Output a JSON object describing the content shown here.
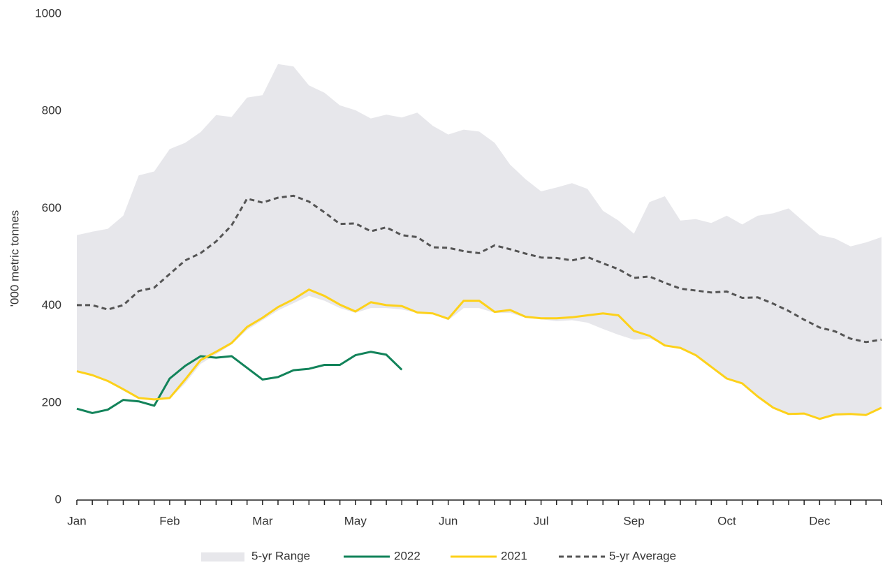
{
  "chart_data": {
    "type": "line",
    "y_label": "'000 metric tonnes",
    "categories": [
      "Jan",
      null,
      null,
      null,
      null,
      null,
      "Feb",
      null,
      null,
      null,
      null,
      null,
      "Mar",
      null,
      null,
      null,
      null,
      null,
      "May",
      null,
      null,
      null,
      null,
      null,
      "Jun",
      null,
      null,
      null,
      null,
      null,
      "Jul",
      null,
      null,
      null,
      null,
      null,
      "Sep",
      null,
      null,
      null,
      null,
      null,
      "Oct",
      null,
      null,
      null,
      null,
      null,
      "Dec",
      null,
      null,
      null,
      null
    ],
    "ylim": [
      0,
      1000
    ],
    "yticks": [
      0,
      200,
      400,
      600,
      800,
      1000
    ],
    "series": [
      {
        "name": "5-yr Range",
        "type": "range",
        "color": "#e7e7eb",
        "lower": [
          265,
          257,
          245,
          225,
          208,
          205,
          208,
          240,
          280,
          300,
          320,
          350,
          370,
          390,
          405,
          420,
          410,
          395,
          385,
          395,
          395,
          392,
          385,
          383,
          370,
          395,
          395,
          385,
          385,
          375,
          372,
          368,
          370,
          365,
          352,
          340,
          330,
          332,
          320,
          312,
          298,
          274,
          250,
          240,
          213,
          190,
          177,
          178,
          167,
          176,
          177,
          175,
          190
        ],
        "upper": [
          545,
          552,
          558,
          585,
          668,
          676,
          722,
          735,
          757,
          792,
          788,
          828,
          833,
          897,
          892,
          853,
          838,
          812,
          802,
          785,
          793,
          787,
          797,
          770,
          752,
          762,
          758,
          735,
          690,
          660,
          635,
          643,
          652,
          640,
          595,
          575,
          548,
          613,
          625,
          575,
          578,
          570,
          585,
          567,
          585,
          590,
          600,
          572,
          545,
          538,
          522,
          530,
          541
        ]
      },
      {
        "name": "2022",
        "type": "line",
        "color": "#12835a",
        "dashed": false,
        "values": [
          188,
          179,
          186,
          206,
          203,
          194,
          250,
          276,
          296,
          293,
          296,
          272,
          248,
          253,
          267,
          270,
          278,
          278,
          298,
          305,
          299,
          268,
          null,
          null,
          null,
          null,
          null,
          null,
          null,
          null,
          null,
          null,
          null,
          null,
          null,
          null,
          null,
          null,
          null,
          null,
          null,
          null,
          null,
          null,
          null,
          null,
          null,
          null,
          null,
          null,
          null,
          null,
          null
        ]
      },
      {
        "name": "2021",
        "type": "line",
        "color": "#fdd11a",
        "dashed": false,
        "values": [
          265,
          257,
          245,
          228,
          210,
          207,
          210,
          248,
          288,
          305,
          323,
          356,
          375,
          397,
          413,
          433,
          420,
          402,
          388,
          407,
          401,
          399,
          386,
          384,
          373,
          410,
          410,
          387,
          391,
          377,
          374,
          374,
          376,
          380,
          384,
          380,
          348,
          338,
          318,
          313,
          298,
          274,
          250,
          240,
          213,
          190,
          177,
          178,
          167,
          176,
          177,
          175,
          190
        ]
      },
      {
        "name": "5-yr Average",
        "type": "line",
        "color": "#555555",
        "dashed": true,
        "values": [
          401,
          401,
          392,
          401,
          430,
          437,
          465,
          493,
          508,
          532,
          565,
          620,
          612,
          622,
          626,
          614,
          592,
          568,
          569,
          553,
          561,
          545,
          541,
          520,
          519,
          512,
          508,
          524,
          516,
          507,
          499,
          498,
          493,
          500,
          487,
          475,
          457,
          460,
          447,
          435,
          431,
          427,
          429,
          416,
          417,
          404,
          389,
          371,
          355,
          347,
          332,
          325,
          330
        ]
      }
    ]
  }
}
